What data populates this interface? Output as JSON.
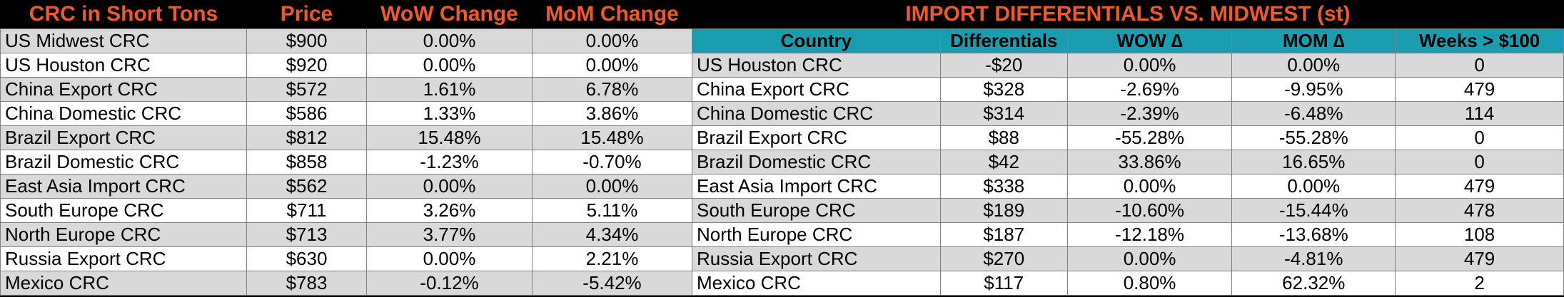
{
  "left_table": {
    "headers": [
      "CRC in Short Tons",
      "Price",
      "WoW Change",
      "MoM Change"
    ],
    "rows": [
      {
        "name": "US Midwest CRC",
        "price": "$900",
        "wow": "0.00%",
        "mom": "0.00%"
      },
      {
        "name": "US Houston CRC",
        "price": "$920",
        "wow": "0.00%",
        "mom": "0.00%"
      },
      {
        "name": "China Export CRC",
        "price": "$572",
        "wow": "1.61%",
        "mom": "6.78%"
      },
      {
        "name": "China Domestic CRC",
        "price": "$586",
        "wow": "1.33%",
        "mom": "3.86%"
      },
      {
        "name": "Brazil Export CRC",
        "price": "$812",
        "wow": "15.48%",
        "mom": "15.48%"
      },
      {
        "name": "Brazil Domestic CRC",
        "price": "$858",
        "wow": "-1.23%",
        "mom": "-0.70%"
      },
      {
        "name": "East Asia Import CRC",
        "price": "$562",
        "wow": "0.00%",
        "mom": "0.00%"
      },
      {
        "name": "South Europe CRC",
        "price": "$711",
        "wow": "3.26%",
        "mom": "5.11%"
      },
      {
        "name": "North Europe CRC",
        "price": "$713",
        "wow": "3.77%",
        "mom": "4.34%"
      },
      {
        "name": "Russia Export CRC",
        "price": "$630",
        "wow": "0.00%",
        "mom": "2.21%"
      },
      {
        "name": "Mexico CRC",
        "price": "$783",
        "wow": "-0.12%",
        "mom": "-5.42%"
      }
    ]
  },
  "right_table": {
    "title": "IMPORT DIFFERENTIALS VS. MIDWEST (st)",
    "headers": [
      "Country",
      "Differentials",
      "WOW ∆",
      "MOM ∆",
      "Weeks > $100"
    ],
    "rows": [
      {
        "name": "US Houston CRC",
        "diff": "-$20",
        "wow": "0.00%",
        "mom": "0.00%",
        "weeks": "0"
      },
      {
        "name": "China Export CRC",
        "diff": "$328",
        "wow": "-2.69%",
        "mom": "-9.95%",
        "weeks": "479"
      },
      {
        "name": "China Domestic CRC",
        "diff": "$314",
        "wow": "-2.39%",
        "mom": "-6.48%",
        "weeks": "114"
      },
      {
        "name": "Brazil Export CRC",
        "diff": "$88",
        "wow": "-55.28%",
        "mom": "-55.28%",
        "weeks": "0"
      },
      {
        "name": "Brazil Domestic CRC",
        "diff": "$42",
        "wow": "33.86%",
        "mom": "16.65%",
        "weeks": "0"
      },
      {
        "name": "East Asia Import CRC",
        "diff": "$338",
        "wow": "0.00%",
        "mom": "0.00%",
        "weeks": "479"
      },
      {
        "name": "South Europe CRC",
        "diff": "$189",
        "wow": "-10.60%",
        "mom": "-15.44%",
        "weeks": "478"
      },
      {
        "name": "North Europe CRC",
        "diff": "$187",
        "wow": "-12.18%",
        "mom": "-13.68%",
        "weeks": "108"
      },
      {
        "name": "Russia Export CRC",
        "diff": "$270",
        "wow": "0.00%",
        "mom": "-4.81%",
        "weeks": "479"
      },
      {
        "name": "Mexico CRC",
        "diff": "$117",
        "wow": "0.80%",
        "mom": "62.32%",
        "weeks": "2"
      }
    ]
  },
  "colors": {
    "title_text": "#ef5a28",
    "header_bg": "#1a9db0",
    "row_shade": "#d9d9d9",
    "row_plain": "#ffffff",
    "background": "#000000"
  }
}
